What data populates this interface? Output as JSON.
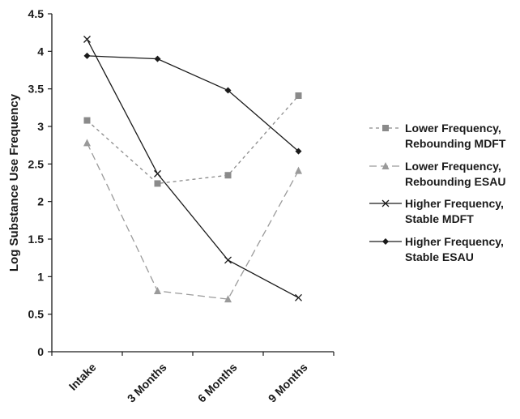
{
  "chart_data": {
    "type": "line",
    "title": "",
    "xlabel": "",
    "ylabel": "Log Substance Use Frequency",
    "categories": [
      "Intake",
      "3 Months",
      "6 Months",
      "9 Months"
    ],
    "ylim": [
      0,
      4.5
    ],
    "yticks": [
      "0",
      "0.5",
      "1",
      "1.5",
      "2",
      "2.5",
      "3",
      "3.5",
      "4",
      "4.5"
    ],
    "grid": false,
    "legend_position": "right",
    "series": [
      {
        "name": "Lower Frequency, Rebounding MDFT",
        "legend_lines": [
          "Lower Frequency,",
          "Rebounding MDFT"
        ],
        "values": [
          3.08,
          2.24,
          2.35,
          3.41
        ],
        "marker": "square",
        "dash": "short",
        "color": "#8a8a8a"
      },
      {
        "name": "Lower Frequency, Rebounding ESAU",
        "legend_lines": [
          "Lower Frequency,",
          "Rebounding ESAU"
        ],
        "values": [
          2.78,
          0.81,
          0.7,
          2.41
        ],
        "marker": "triangle",
        "dash": "long",
        "color": "#9a9a9a"
      },
      {
        "name": "Higher Frequency, Stable MDFT",
        "legend_lines": [
          "Higher Frequency,",
          "Stable MDFT"
        ],
        "values": [
          4.16,
          2.37,
          1.22,
          0.72
        ],
        "marker": "x",
        "dash": "solid",
        "color": "#1a1a1a"
      },
      {
        "name": "Higher Frequency, Stable ESAU",
        "legend_lines": [
          "Higher Frequency,",
          "Stable ESAU"
        ],
        "values": [
          3.94,
          3.9,
          3.48,
          2.67
        ],
        "marker": "diamond",
        "dash": "solid",
        "color": "#1a1a1a"
      }
    ]
  }
}
